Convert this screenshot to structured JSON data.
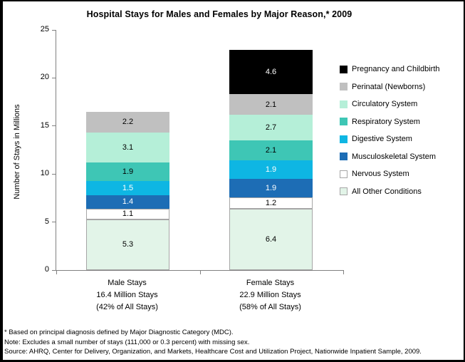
{
  "title": "Hospital Stays for Males and Females by Major Reason,* 2009",
  "chart_data": {
    "type": "stacked-bar",
    "title": "Hospital Stays for Males and Females by Major Reason,* 2009",
    "xlabel": "",
    "ylabel": "Number of Stays in Millions",
    "ylim": [
      0,
      25
    ],
    "yticks": [
      0,
      5,
      10,
      15,
      20,
      25
    ],
    "grid": false,
    "legend_position": "right",
    "axis_color": "#808080",
    "bars": [
      {
        "name": "Male",
        "total_label": "16.4 Million Stays",
        "label_lines": [
          "Male Stays",
          "16.4 Million Stays",
          "(42% of All Stays)"
        ]
      },
      {
        "name": "Female",
        "total_label": "22.9 Million Stays",
        "label_lines": [
          "Female Stays",
          "22.9 Million Stays",
          "(58% of All Stays)"
        ]
      }
    ],
    "series": [
      {
        "name": "All Other Conditions",
        "color": "#E2F4E8",
        "border": "#A6A6A6",
        "label_color": "#000000",
        "values": [
          5.3,
          6.4
        ]
      },
      {
        "name": "Nervous System",
        "color": "#FFFFFF",
        "border": "#A6A6A6",
        "label_color": "#000000",
        "values": [
          1.1,
          1.2
        ]
      },
      {
        "name": "Musculoskeletal System",
        "color": "#1D6DB5",
        "label_color": "#FFFFFF",
        "values": [
          1.4,
          1.9
        ]
      },
      {
        "name": "Digestive System",
        "color": "#0EB6E3",
        "label_color": "#FFFFFF",
        "values": [
          1.5,
          1.9
        ]
      },
      {
        "name": "Respiratory System",
        "color": "#3EC6B5",
        "label_color": "#000000",
        "values": [
          1.9,
          2.1
        ]
      },
      {
        "name": "Circulatory System",
        "color": "#B5EFD8",
        "label_color": "#000000",
        "values": [
          3.1,
          2.7
        ]
      },
      {
        "name": "Perinatal (Newborns)",
        "color": "#C0C0C0",
        "pattern": "dots",
        "label_color": "#000000",
        "values": [
          2.2,
          2.1
        ]
      },
      {
        "name": "Pregnancy and Childbirth",
        "color": "#000000",
        "label_color": "#FFFFFF",
        "values": [
          0,
          4.6
        ]
      }
    ]
  },
  "footnotes": [
    "* Based on principal diagnosis defined by Major Diagnostic Category (MDC).",
    "Note: Excludes a small number of stays (111,000 or 0.3 percent) with missing sex.",
    "Source: AHRQ, Center for Delivery, Organization, and Markets, Healthcare Cost and Utilization Project, Nationwide Inpatient Sample, 2009."
  ]
}
